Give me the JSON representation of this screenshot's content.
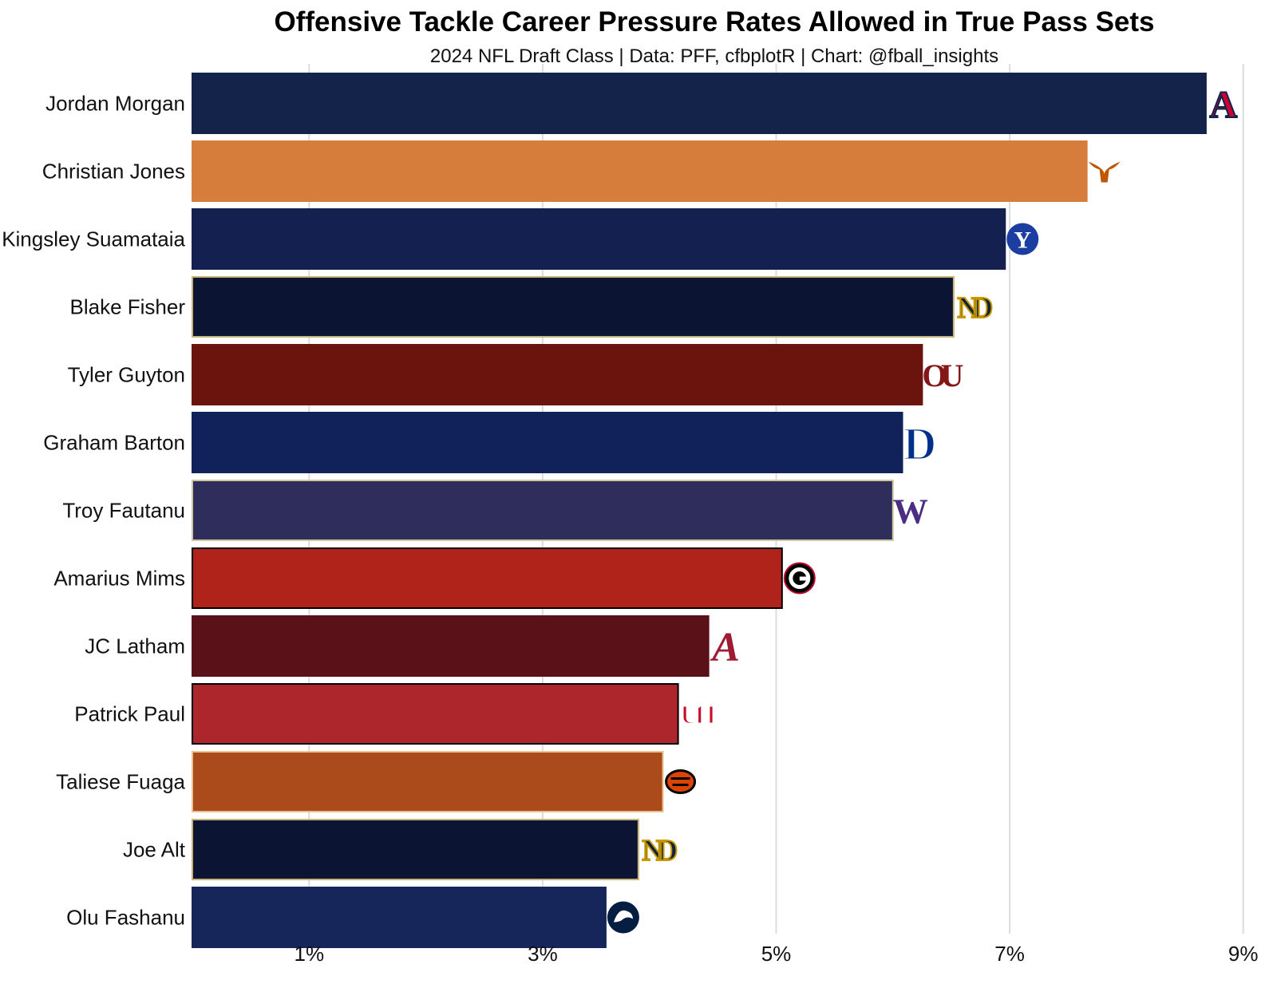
{
  "title": "Offensive Tackle Career Pressure Rates Allowed in True Pass Sets",
  "subtitle": "2024 NFL Draft Class | Data: PFF, cfbplotR | Chart: @fball_insights",
  "chart_data": {
    "type": "bar",
    "orientation": "horizontal",
    "title": "Offensive Tackle Career Pressure Rates Allowed in True Pass Sets",
    "subtitle": "2024 NFL Draft Class | Data: PFF, cfbplotR | Chart: @fball_insights",
    "xlabel": "",
    "ylabel": "",
    "xlim": [
      0,
      9
    ],
    "x_ticks": [
      1,
      3,
      5,
      7,
      9
    ],
    "x_tick_labels": [
      "1%",
      "3%",
      "5%",
      "7%",
      "9%"
    ],
    "grid": "vertical",
    "legend": "none",
    "categories": [
      "Jordan Morgan",
      "Christian Jones",
      "Kingsley Suamataia",
      "Blake Fisher",
      "Tyler Guyton",
      "Graham Barton",
      "Troy Fautanu",
      "Amarius Mims",
      "JC Latham",
      "Patrick Paul",
      "Taliese Fuaga",
      "Joe Alt",
      "Olu Fashanu"
    ],
    "values": [
      8.68,
      7.66,
      6.96,
      6.52,
      6.25,
      6.08,
      6.0,
      5.05,
      4.42,
      4.16,
      4.03,
      3.82,
      3.54
    ],
    "bar_colors": [
      "#13234a",
      "#d67d3c",
      "#142050",
      "#0b1533",
      "#6b140e",
      "#112159",
      "#2f2d5c",
      "#af231a",
      "#5b1118",
      "#ad262b",
      "#ab4b1c",
      "#0b1533",
      "#16255a"
    ],
    "bar_outlines": [
      "#13234a",
      "#d67d3c",
      "#142050",
      "#c6b37a",
      "#6b140e",
      "#112159",
      "#cfc7a0",
      "#000000",
      "#5b1118",
      "#000000",
      "#e8c290",
      "#c6b37a",
      "#16255a"
    ],
    "team_logos": [
      "arizona-a-logo",
      "texas-longhorn-logo",
      "byu-y-logo",
      "notre-dame-nd-logo",
      "oklahoma-ou-logo",
      "duke-d-logo",
      "washington-w-logo",
      "georgia-g-logo",
      "alabama-a-logo",
      "houston-uh-logo",
      "oregon-state-beaver-logo",
      "notre-dame-nd-logo",
      "penn-state-lion-logo"
    ]
  }
}
